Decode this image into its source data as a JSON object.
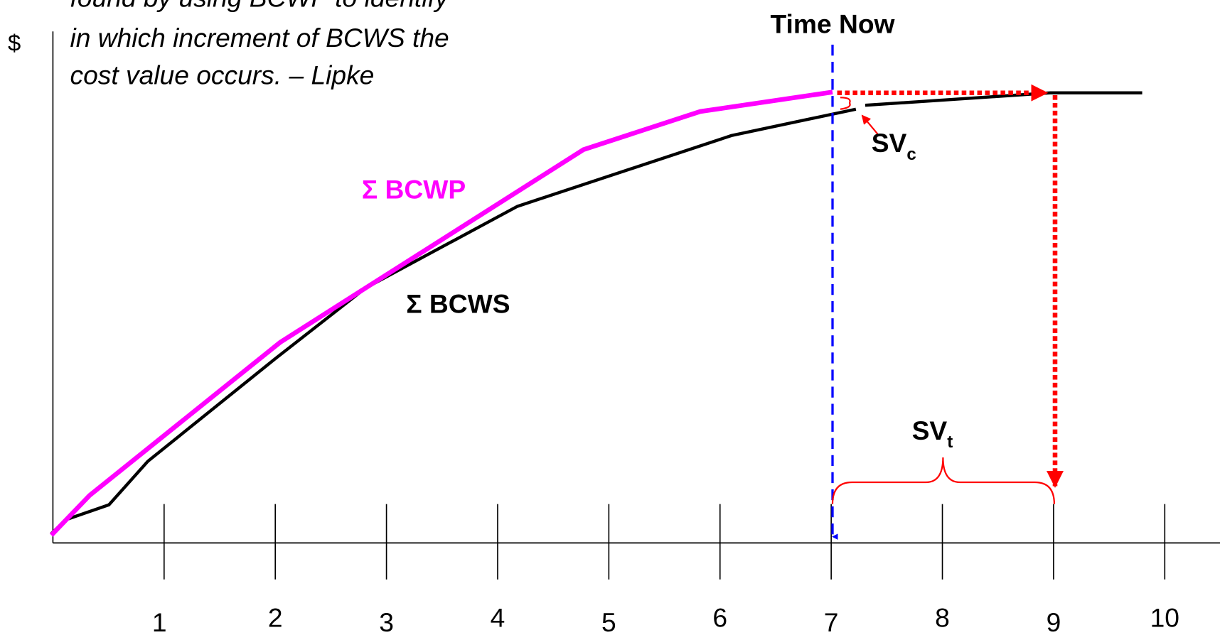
{
  "quote_lines": [
    "found by using BCWP to identify",
    "in which increment of BCWS the",
    "cost value occurs. – Lipke"
  ],
  "y_axis_label": "$",
  "time_now": "Time Now",
  "bcwp_label": "Σ BCWP",
  "bcws_label": "Σ BCWS",
  "sv_c": {
    "main": "SV",
    "sub": "c"
  },
  "sv_t": {
    "main": "SV",
    "sub": "t"
  },
  "x_axis_ticks": [
    "1",
    "2",
    "3",
    "4",
    "5",
    "6",
    "7",
    "8",
    "9",
    "10"
  ]
}
